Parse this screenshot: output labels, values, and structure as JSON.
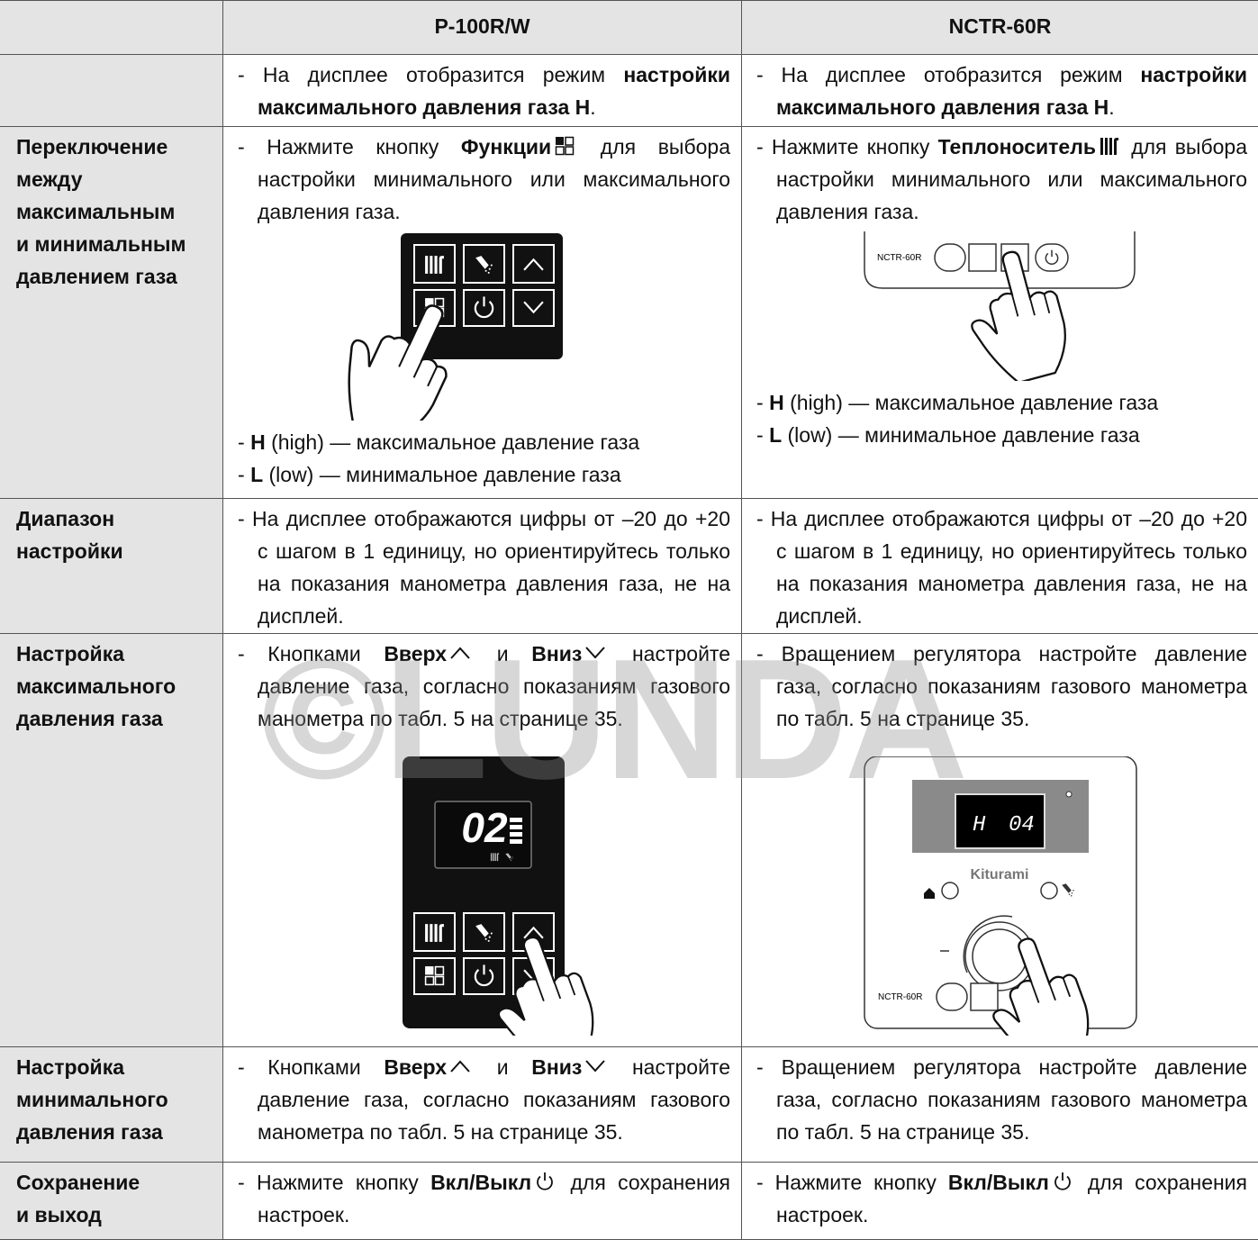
{
  "header": {
    "model_1": "P-100R/W",
    "model_2": "NCTR-60R"
  },
  "rows": [
    {
      "p100": [
        [
          "- На дисплее отобразится режим ",
          "настройки максимального давления газа H",
          "."
        ]
      ],
      "nctr": [
        [
          "- На дисплее отобразится режим ",
          "настройки максимального давления газа H",
          "."
        ]
      ]
    },
    {
      "label": [
        "Переключение",
        "между",
        "максимальным",
        "и минимальным",
        "давлением газа"
      ],
      "p100": [
        [
          "- Нажмите кнопку ",
          "Функции",
          " для выбора настройки минимального или максимального давления газа."
        ],
        [
          "- ",
          "H",
          " (high) — максимальное давление газа"
        ],
        [
          "- ",
          "L",
          " (low) — минимальное давление газа"
        ]
      ],
      "nctr": [
        [
          "- Нажмите кнопку ",
          "Теплоноситель",
          " для выбора настройки минимального или максимального давления газа."
        ],
        [
          "- ",
          "H",
          " (high) — максимальное давление газа"
        ],
        [
          "- ",
          "L",
          " (low) — минимальное давление газа"
        ]
      ]
    },
    {
      "label": [
        "Диапазон",
        "настройки"
      ],
      "p100": [
        [
          "- На дисплее отображаются цифры от –20 до +20 с шагом в 1 единицу, но ориентируйтесь только на показания манометра давления газа, не на дисплей."
        ]
      ],
      "nctr": [
        [
          "- На дисплее отображаются цифры от –20 до +20 с шагом в 1 единицу, но ориентируйтесь только на показания манометра давления газа, не на дисплей."
        ]
      ]
    },
    {
      "label": [
        "Настройка",
        "максимального",
        "давления газа"
      ],
      "p100": [
        [
          "- Кнопками ",
          "Вверх",
          " и ",
          "Вниз",
          " настройте давление газа, согласно показаниям газового манометра по табл. 5 на странице 35."
        ]
      ],
      "nctr": [
        [
          "- Вращением регулятора настройте давление газа, согласно показаниям газового манометра по табл. 5 на странице 35."
        ]
      ]
    },
    {
      "label": [
        "Настройка",
        "минимального",
        "давления газа"
      ],
      "p100": [
        [
          "- Кнопками ",
          "Вверх",
          " и ",
          "Вниз",
          " настройте давление газа, согласно показаниям газового манометра по табл. 5 на странице 35."
        ]
      ],
      "nctr": [
        [
          "- Вращением регулятора настройте давление газа, согласно показаниям газового манометра по табл. 5 на странице 35."
        ]
      ]
    },
    {
      "label": [
        "Сохранение",
        "и выход"
      ],
      "p100": [
        [
          "- Нажмите кнопку ",
          "Вкл/Выкл",
          " для сохранения настроек."
        ]
      ],
      "nctr": [
        [
          "- Нажмите кнопку ",
          "Вкл/Выкл",
          " для сохранения настроек."
        ]
      ]
    }
  ],
  "figures": {
    "nctr_model": "NCTR-60R",
    "p100_display": "02",
    "nctr_display_mode": "H",
    "nctr_display_value": "04",
    "brand": "Kiturami"
  },
  "watermark": "©LUNDA"
}
